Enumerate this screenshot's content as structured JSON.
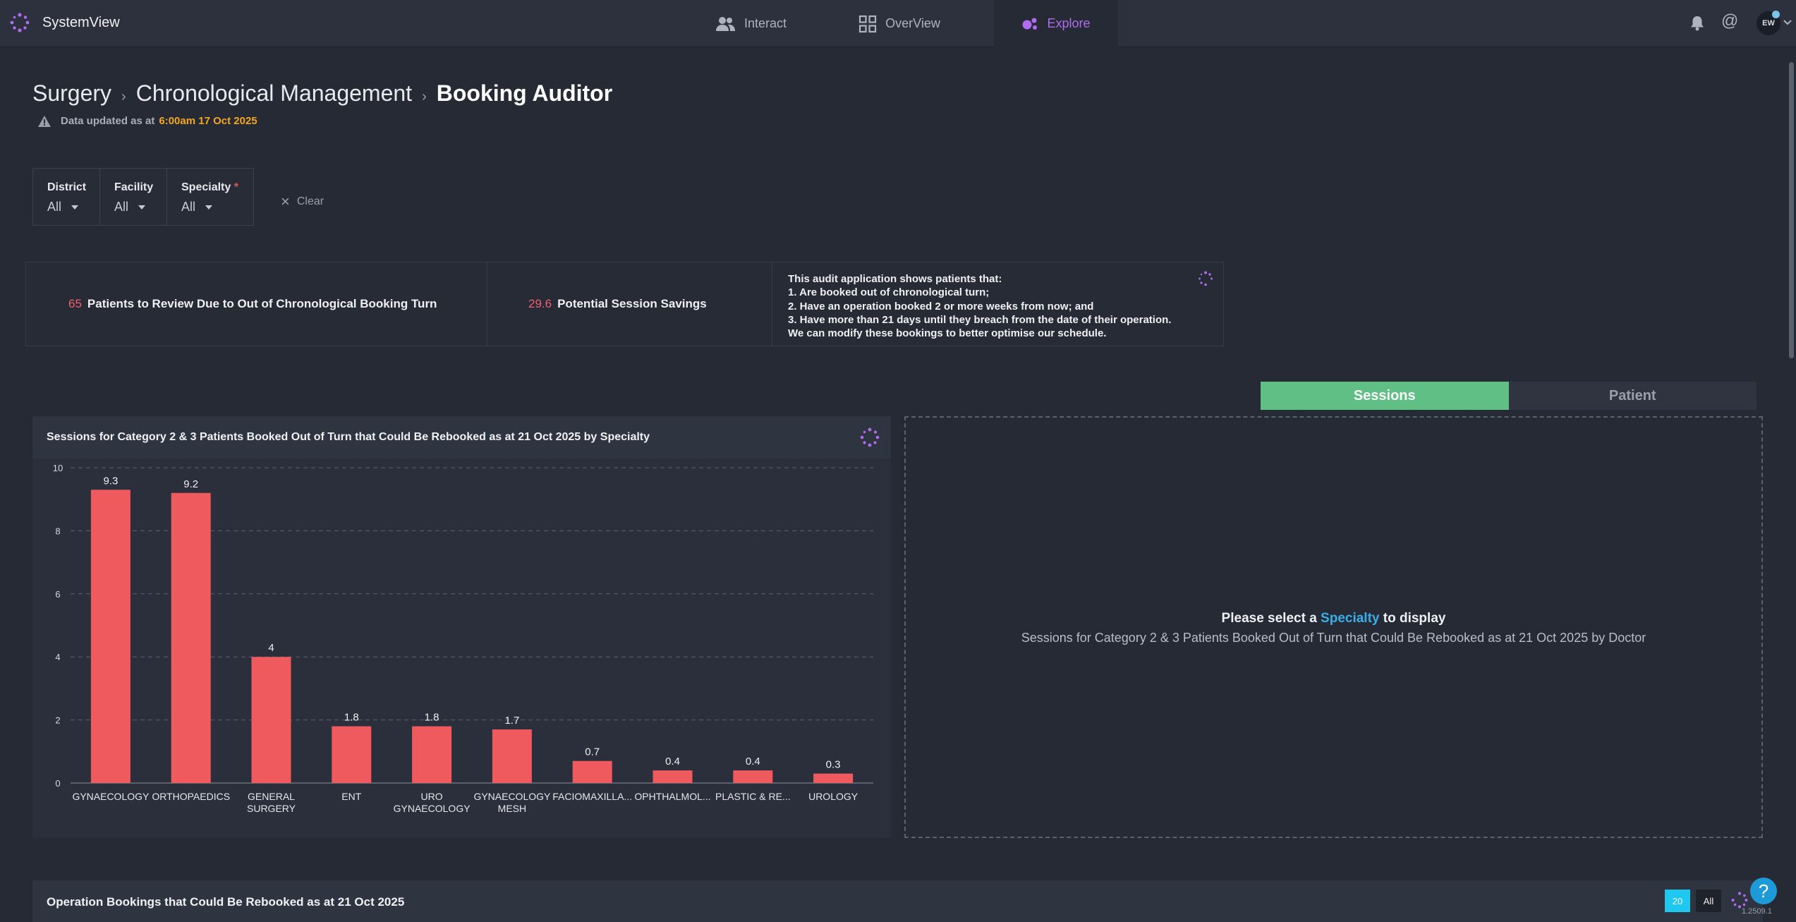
{
  "app": {
    "name": "SystemView"
  },
  "nav": {
    "tabs": [
      {
        "label": "Interact",
        "icon": "users-icon"
      },
      {
        "label": "OverView",
        "icon": "grid-icon"
      },
      {
        "label": "Explore",
        "icon": "explore-icon",
        "active": true
      }
    ]
  },
  "user": {
    "initials": "EW"
  },
  "breadcrumb": [
    "Surgery",
    "Chronological Management",
    "Booking Auditor"
  ],
  "data_updated": {
    "prefix": "Data updated as at",
    "when": "6:00am 17 Oct 2025"
  },
  "filters": [
    {
      "label": "District",
      "value": "All",
      "required": false
    },
    {
      "label": "Facility",
      "value": "All",
      "required": false
    },
    {
      "label": "Specialty",
      "value": "All",
      "required": true,
      "required_mark": "*"
    }
  ],
  "clear_label": "Clear",
  "kpis": {
    "patients_to_review": {
      "value": "65",
      "label": "Patients to Review Due to Out of Chronological Booking Turn"
    },
    "session_savings": {
      "value": "29.6",
      "label": "Potential Session Savings"
    },
    "description": [
      "This audit application shows patients that:",
      "1. Are booked out of chronological turn;",
      "2. Have an operation booked 2 or more weeks from now; and",
      "3. Have more than 21 days until they breach from the date of their operation.",
      "We can modify these bookings to better optimise our schedule."
    ]
  },
  "view_toggle": {
    "sessions": "Sessions",
    "patient": "Patient",
    "active": "sessions"
  },
  "chart_panel": {
    "title": "Sessions for Category 2 & 3 Patients Booked Out of Turn that Could Be Rebooked as at 21 Oct 2025 by Specialty"
  },
  "chart_data": {
    "type": "bar",
    "title": "Sessions for Category 2 & 3 Patients Booked Out of Turn that Could Be Rebooked as at 21 Oct 2025 by Specialty",
    "categories": [
      [
        "GYNAECOLOGY"
      ],
      [
        "ORTHOPAEDICS"
      ],
      [
        "GENERAL",
        "SURGERY"
      ],
      [
        "ENT"
      ],
      [
        "URO",
        "GYNAECOLOGY"
      ],
      [
        "GYNAECOLOGY",
        "MESH"
      ],
      [
        "FACIOMAXILLA..."
      ],
      [
        "OPHTHALMOL..."
      ],
      [
        "PLASTIC & RE..."
      ],
      [
        "UROLOGY"
      ]
    ],
    "values": [
      9.3,
      9.2,
      4,
      1.8,
      1.8,
      1.7,
      0.7,
      0.4,
      0.4,
      0.3
    ],
    "ylim": [
      0,
      10
    ],
    "yticks": [
      0,
      2,
      4,
      6,
      8,
      10
    ],
    "grid": true,
    "bar_color": "#ee5a5e"
  },
  "empty_panel": {
    "prefix": "Please select a",
    "highlight": "Specialty",
    "suffix": "to display",
    "subtitle": "Sessions for Category 2 & 3 Patients Booked Out of Turn that Could Be Rebooked as at 21 Oct 2025 by Doctor"
  },
  "bottom_panel": {
    "title": "Operation Bookings that Could Be Rebooked as at 21 Oct 2025",
    "page_size_selected": "20",
    "page_size_all": "All"
  },
  "help_label": "?",
  "version": "1.2509.1",
  "colors": {
    "accent": "#b06cf0",
    "positive": "#5fbf84",
    "kpi_number": "#ef5f6b",
    "timestamp": "#f5a623",
    "link": "#3aaee8"
  }
}
